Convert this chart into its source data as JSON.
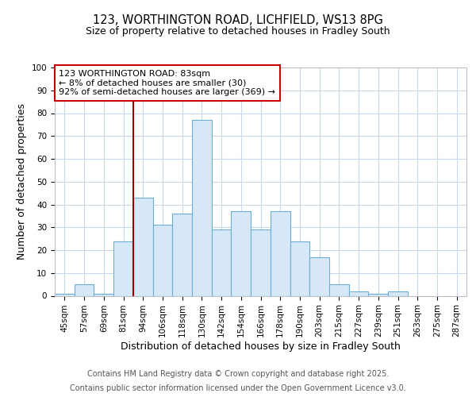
{
  "title1": "123, WORTHINGTON ROAD, LICHFIELD, WS13 8PG",
  "title2": "Size of property relative to detached houses in Fradley South",
  "xlabel": "Distribution of detached houses by size in Fradley South",
  "ylabel": "Number of detached properties",
  "categories": [
    "45sqm",
    "57sqm",
    "69sqm",
    "81sqm",
    "94sqm",
    "106sqm",
    "118sqm",
    "130sqm",
    "142sqm",
    "154sqm",
    "166sqm",
    "178sqm",
    "190sqm",
    "203sqm",
    "215sqm",
    "227sqm",
    "239sqm",
    "251sqm",
    "263sqm",
    "275sqm",
    "287sqm"
  ],
  "values": [
    1,
    5,
    1,
    24,
    43,
    31,
    36,
    77,
    29,
    37,
    29,
    37,
    24,
    17,
    5,
    2,
    1,
    2,
    0,
    0,
    0
  ],
  "bar_color": "#d6e8f7",
  "bar_edge_color": "#6baed6",
  "vline_color": "#990000",
  "annotation_text": "123 WORTHINGTON ROAD: 83sqm\n← 8% of detached houses are smaller (30)\n92% of semi-detached houses are larger (369) →",
  "annotation_box_color": "#ffffff",
  "annotation_box_edge": "#cc0000",
  "ylim": [
    0,
    100
  ],
  "yticks": [
    0,
    10,
    20,
    30,
    40,
    50,
    60,
    70,
    80,
    90,
    100
  ],
  "footer1": "Contains HM Land Registry data © Crown copyright and database right 2025.",
  "footer2": "Contains public sector information licensed under the Open Government Licence v3.0.",
  "bg_color": "#ffffff",
  "plot_bg_color": "#ffffff",
  "title_fontsize": 10.5,
  "subtitle_fontsize": 9,
  "axis_label_fontsize": 9,
  "tick_fontsize": 7.5,
  "annotation_fontsize": 8,
  "footer_fontsize": 7,
  "grid_color": "#c8d8e8"
}
